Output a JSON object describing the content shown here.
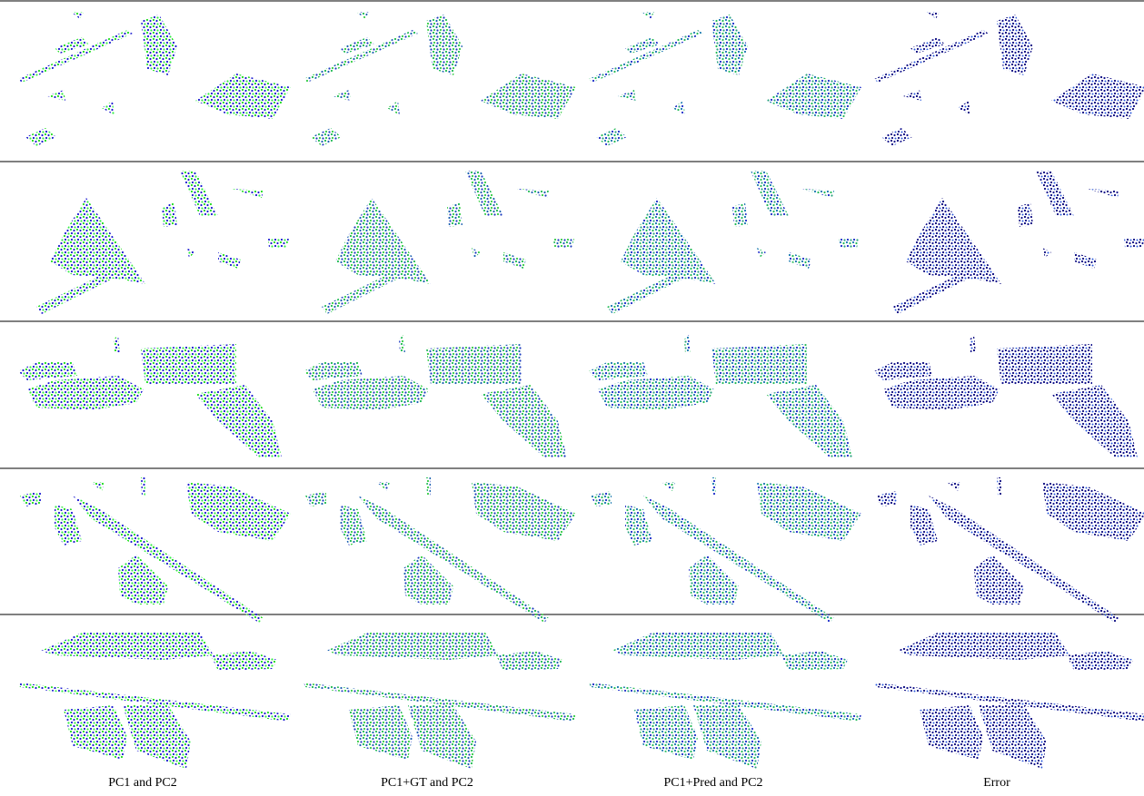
{
  "figure": {
    "captions": [
      "PC1 and PC2",
      "PC1+GT and PC2",
      "PC1+Pred and PC2",
      "Error"
    ]
  }
}
